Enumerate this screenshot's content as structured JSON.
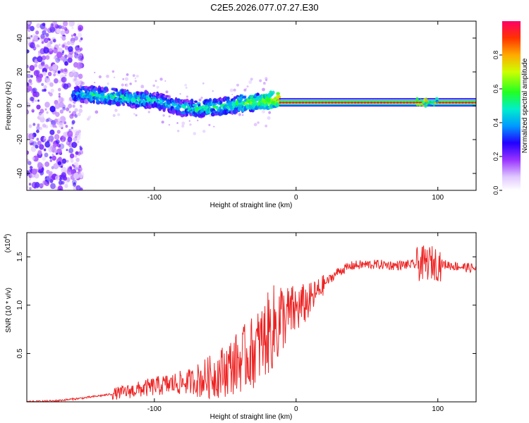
{
  "title": "C2E5.2026.077.07.27.E30",
  "chart_data": [
    {
      "type": "heatmap",
      "title": "C2E5.2026.077.07.27.E30",
      "xlabel": "Height of straight line (km)",
      "ylabel": "Frequency (Hz)",
      "xlim": [
        -190,
        127
      ],
      "ylim": [
        -50,
        50
      ],
      "xticks": [
        -100,
        0,
        100
      ],
      "xtick_labels": [
        "-100",
        "0",
        "100"
      ],
      "yticks": [
        -40,
        -20,
        0,
        20,
        40
      ],
      "ytick_labels": [
        "-40",
        "-20",
        "0",
        "20",
        "40"
      ],
      "colorbar": {
        "label": "Normalized spectral amplitude",
        "range": [
          0,
          1
        ],
        "ticks": [
          0.0,
          0.2,
          0.4,
          0.6,
          0.8
        ],
        "tick_labels": [
          "0.0",
          "0.2",
          "0.4",
          "0.6",
          "0.8"
        ],
        "colors": [
          "#ffffff",
          "#cc99ff",
          "#8800ff",
          "#0000ff",
          "#00ccff",
          "#00ff44",
          "#ffff00",
          "#ff8800",
          "#ff0055"
        ]
      },
      "band_ridge": {
        "x": [
          -155,
          -135,
          -115,
          -100,
          -90,
          -80,
          -70,
          -60,
          -50,
          -40,
          -30,
          -20,
          -15,
          -10,
          0,
          10,
          20,
          50,
          100,
          127
        ],
        "y": [
          7,
          6,
          4,
          3,
          1,
          -1,
          -2,
          -1,
          0,
          1,
          2,
          3,
          4,
          3,
          2,
          2,
          2,
          2,
          2,
          2
        ],
        "amplitude": [
          0.45,
          0.5,
          0.5,
          0.45,
          0.45,
          0.45,
          0.5,
          0.5,
          0.5,
          0.55,
          0.6,
          0.65,
          0.7,
          0.8,
          0.85,
          0.9,
          0.9,
          0.9,
          0.9,
          0.9
        ]
      },
      "noise_region_x": [
        -190,
        -155
      ]
    },
    {
      "type": "line",
      "xlabel": "Height of straight line (km)",
      "ylabel": "SNR (10 * v/v)",
      "scale_label": "(x10",
      "scale_exponent": "4",
      "xlim": [
        -190,
        127
      ],
      "ylim": [
        0,
        1.75
      ],
      "xticks": [
        -100,
        0,
        100
      ],
      "xtick_labels": [
        "-100",
        "0",
        "100"
      ],
      "yticks": [
        0.5,
        1.0,
        1.5
      ],
      "ytick_labels": [
        "0.5",
        "1.0",
        "1.5"
      ],
      "color": "#ee2222",
      "series": [
        {
          "name": "SNR",
          "x": [
            -190,
            -170,
            -150,
            -130,
            -110,
            -100,
            -90,
            -80,
            -70,
            -60,
            -50,
            -40,
            -30,
            -25,
            -20,
            -15,
            -10,
            0,
            10,
            20,
            30,
            40,
            50,
            60,
            70,
            80,
            85,
            90,
            95,
            100,
            105,
            110,
            120,
            127
          ],
          "y": [
            0.0,
            0.01,
            0.04,
            0.08,
            0.13,
            0.16,
            0.18,
            0.2,
            0.22,
            0.26,
            0.33,
            0.42,
            0.52,
            0.6,
            0.7,
            0.78,
            0.86,
            0.95,
            1.05,
            1.22,
            1.35,
            1.41,
            1.42,
            1.42,
            1.41,
            1.42,
            1.42,
            1.43,
            1.44,
            1.43,
            1.42,
            1.41,
            1.39,
            1.38
          ]
        }
      ]
    }
  ]
}
